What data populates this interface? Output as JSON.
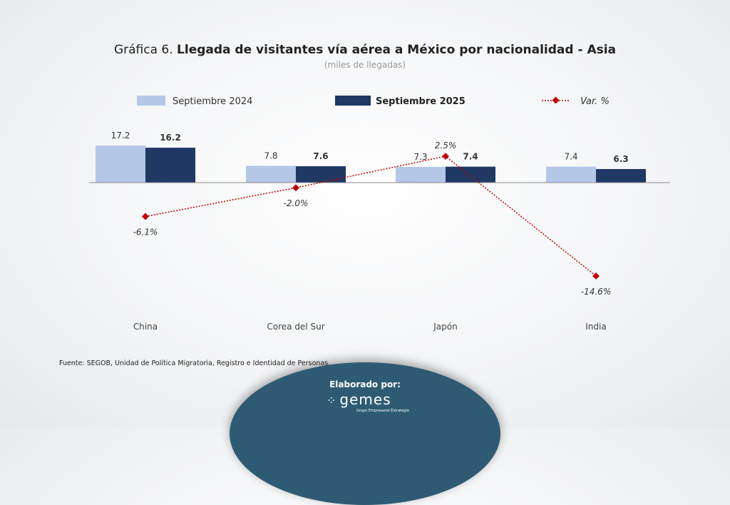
{
  "title_prefix": "Gráfica 6.",
  "title_main": "Llegada de visitantes vía aérea a México por nacionalidad - Asia",
  "subtitle": "(miles de llegadas)",
  "source": "Fuente: SEGOB, Unidad de Política Migratoria, Registro e Identidad de Personas.",
  "credit": {
    "label": "Elaborado por:",
    "logo": "gemes",
    "logo_tagline": "Grupo Empresarial Estrategia"
  },
  "chart_data": {
    "type": "bar",
    "categories": [
      "China",
      "Corea del Sur",
      "Japón",
      "India"
    ],
    "series": [
      {
        "name": "Septiembre 2024",
        "values": [
          17.2,
          7.8,
          7.3,
          7.4
        ],
        "color": "#b4c7e7"
      },
      {
        "name": "Septiembre 2025",
        "values": [
          16.2,
          7.6,
          7.4,
          6.3
        ],
        "color": "#1f3864"
      }
    ],
    "line_series": {
      "name": "Var. %",
      "values": [
        -6.1,
        -2.0,
        2.5,
        -14.6
      ],
      "labels": [
        "-6.1%",
        "-2.0%",
        "2.5%",
        "-14.6%"
      ],
      "color": "#c00000"
    },
    "legend": "top"
  }
}
